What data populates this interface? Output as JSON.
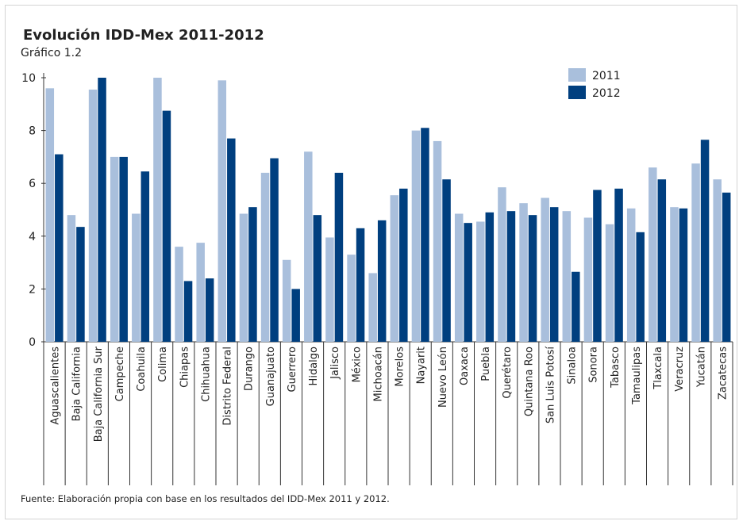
{
  "chart_data": {
    "type": "bar",
    "title": "Evolución IDD-Mex 2011-2012",
    "subtitle": "Gráfico 1.2",
    "source": "Fuente: Elaboración propia con base en los resultados del IDD-Mex 2011 y 2012.",
    "categories": [
      "Aguascalientes",
      "Baja California",
      "Baja California Sur",
      "Campeche",
      "Coahuila",
      "Colima",
      "Chiapas",
      "Chihuahua",
      "Distrito Federal",
      "Durango",
      "Guanajuato",
      "Guerrero",
      "Hidalgo",
      "Jalisco",
      "México",
      "Michoacán",
      "Morelos",
      "Nayarit",
      "Nuevo León",
      "Oaxaca",
      "Puebla",
      "Querétaro",
      "Quintana Roo",
      "San Luis Potosí",
      "Sinaloa",
      "Sonora",
      "Tabasco",
      "Tamaulipas",
      "Tlaxcala",
      "Veracruz",
      "Yucatán",
      "Zacatecas"
    ],
    "series": [
      {
        "name": "2011",
        "color": "#a9bfdc",
        "values": [
          9.6,
          4.8,
          9.55,
          7.0,
          4.85,
          10.0,
          3.6,
          3.75,
          9.9,
          4.85,
          6.4,
          3.1,
          7.2,
          3.95,
          3.3,
          2.6,
          5.55,
          8.0,
          7.6,
          4.85,
          4.55,
          5.85,
          5.25,
          5.45,
          4.95,
          4.7,
          4.45,
          5.05,
          6.6,
          5.1,
          6.75,
          6.15
        ]
      },
      {
        "name": "2012",
        "color": "#003f7f",
        "values": [
          7.1,
          4.35,
          10.0,
          7.0,
          6.45,
          8.75,
          2.3,
          2.4,
          7.7,
          5.1,
          6.95,
          2.0,
          4.8,
          6.4,
          4.3,
          4.6,
          5.8,
          8.1,
          6.15,
          4.5,
          4.9,
          4.95,
          4.8,
          5.1,
          2.65,
          5.75,
          5.8,
          4.15,
          6.15,
          5.05,
          7.65,
          5.65
        ]
      }
    ],
    "y_ticks": [
      "0",
      "2",
      "4",
      "6",
      "8",
      "10"
    ],
    "ylim": [
      0,
      10
    ],
    "legend_position": "top-right",
    "grid": false
  }
}
